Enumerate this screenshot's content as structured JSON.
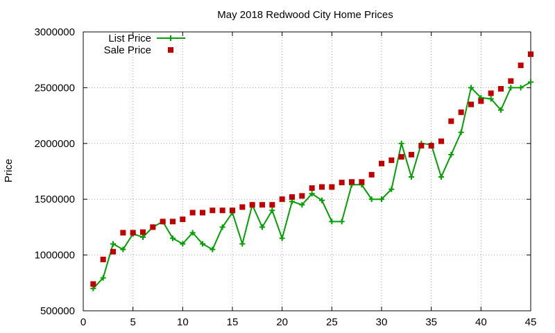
{
  "chart_data": {
    "type": "line",
    "title": "May 2018 Redwood City Home Prices",
    "xlabel": "",
    "ylabel": "Price",
    "xlim": [
      0,
      45
    ],
    "ylim": [
      500000,
      3000000
    ],
    "xticks": [
      0,
      5,
      10,
      15,
      20,
      25,
      30,
      35,
      40,
      45
    ],
    "yticks": [
      500000,
      1000000,
      1500000,
      2000000,
      2500000,
      3000000
    ],
    "grid": true,
    "legend_position": "top-left",
    "x": [
      1,
      2,
      3,
      4,
      5,
      6,
      7,
      8,
      9,
      10,
      11,
      12,
      13,
      14,
      15,
      16,
      17,
      18,
      19,
      20,
      21,
      22,
      23,
      24,
      25,
      26,
      27,
      28,
      29,
      30,
      31,
      32,
      33,
      34,
      35,
      36,
      37,
      38,
      39,
      40,
      41,
      42,
      43,
      44,
      45
    ],
    "series": [
      {
        "name": "List Price",
        "style": "linespoints",
        "color": "#00a000",
        "values": [
          700000,
          795000,
          1100000,
          1050000,
          1190000,
          1160000,
          1250000,
          1300000,
          1150000,
          1100000,
          1200000,
          1100000,
          1050000,
          1250000,
          1380000,
          1100000,
          1450000,
          1250000,
          1400000,
          1150000,
          1480000,
          1450000,
          1550000,
          1490000,
          1300000,
          1300000,
          1630000,
          1630000,
          1500000,
          1500000,
          1590000,
          2000000,
          1700000,
          2000000,
          1990000,
          1700000,
          1900000,
          2100000,
          2500000,
          2410000,
          2400000,
          2300000,
          2500000,
          2500000,
          2550000
        ]
      },
      {
        "name": "Sale Price",
        "style": "points",
        "color": "#c00000",
        "values": [
          740000,
          960000,
          1030000,
          1200000,
          1200000,
          1205000,
          1250000,
          1300000,
          1300000,
          1320000,
          1380000,
          1380000,
          1400000,
          1400000,
          1400000,
          1430000,
          1450000,
          1450000,
          1450000,
          1500000,
          1520000,
          1530000,
          1600000,
          1610000,
          1610000,
          1650000,
          1655000,
          1655000,
          1720000,
          1820000,
          1850000,
          1880000,
          1900000,
          1980000,
          1980000,
          2020000,
          2200000,
          2280000,
          2350000,
          2380000,
          2450000,
          2490000,
          2560000,
          2700000,
          2800000
        ]
      }
    ]
  }
}
